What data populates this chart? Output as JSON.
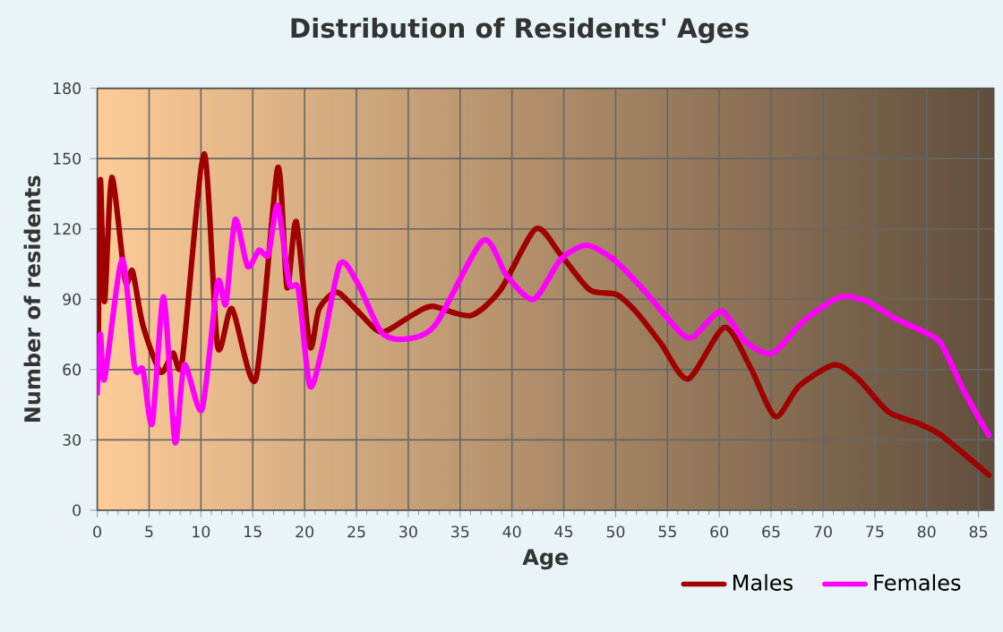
{
  "chart_data": {
    "type": "line",
    "title": "Distribution of Residents' Ages",
    "xlabel": "Age",
    "ylabel": "Number of residents",
    "xlim": [
      0,
      86.5
    ],
    "xticks": [
      0,
      5,
      10,
      15,
      20,
      25,
      30,
      35,
      40,
      45,
      50,
      55,
      60,
      65,
      70,
      75,
      80,
      85
    ],
    "ylim": [
      0,
      180
    ],
    "yticks": [
      0,
      30,
      60,
      90,
      120,
      150,
      180
    ],
    "grid": true,
    "legend": "bottom",
    "marker": "none",
    "line_style": "solid",
    "series": [
      {
        "name": "Males",
        "color": "#a00000",
        "x": [
          0.1,
          0.3,
          0.7,
          1.4,
          2.7,
          3.4,
          4.4,
          6.1,
          7.3,
          8.2,
          10.3,
          11.6,
          13.0,
          15.3,
          17.4,
          18.3,
          19.2,
          20.5,
          21.4,
          23.1,
          25.1,
          27.4,
          30.3,
          32.3,
          36.0,
          38.9,
          42.3,
          44.7,
          47.5,
          50.1,
          52.1,
          54.4,
          57.0,
          60.5,
          63.0,
          65.4,
          67.7,
          71.1,
          73.4,
          76.3,
          79.2,
          81.4,
          86.0
        ],
        "values": [
          71,
          141,
          89,
          142,
          98,
          102,
          79,
          59,
          67,
          64,
          152,
          70,
          86,
          56,
          146,
          95,
          123,
          70,
          86,
          93,
          85,
          76,
          83,
          87,
          83,
          94,
          120,
          109,
          94,
          92,
          84,
          71,
          56,
          78,
          61,
          40,
          53,
          62,
          56,
          42,
          37,
          32,
          15
        ]
      },
      {
        "name": "Females",
        "color": "#ff00ff",
        "x": [
          0,
          0.3,
          0.7,
          2.4,
          3.6,
          4.4,
          5.3,
          6.4,
          7.5,
          8.4,
          10.1,
          11.6,
          12.4,
          13.3,
          14.5,
          15.6,
          16.5,
          17.4,
          18.5,
          19.4,
          20.5,
          21.7,
          23.4,
          25.1,
          27.4,
          29.7,
          32.6,
          37.2,
          39.5,
          42.1,
          44.7,
          47.2,
          49.8,
          52.7,
          56.2,
          57.5,
          60.2,
          62.5,
          65.1,
          68.2,
          71.7,
          74.3,
          76.9,
          79.8,
          81.4,
          83.7,
          86.0
        ],
        "values": [
          50,
          75,
          56,
          107,
          61,
          60,
          37,
          91,
          29,
          62,
          43,
          97,
          88,
          124,
          104,
          111,
          109,
          130,
          97,
          94,
          53,
          69,
          105,
          97,
          76,
          73,
          79,
          115,
          100,
          90,
          107,
          113,
          107,
          94,
          76,
          74,
          85,
          72,
          67,
          81,
          91,
          89,
          82,
          76,
          71,
          50,
          32
        ]
      }
    ]
  }
}
